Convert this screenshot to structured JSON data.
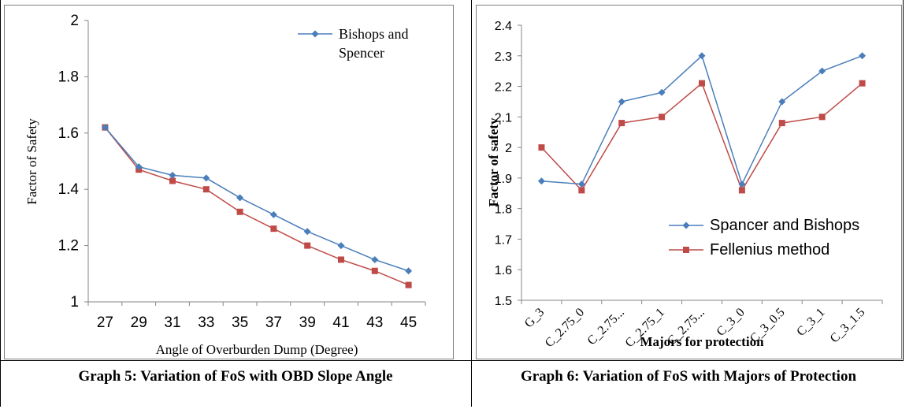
{
  "colors": {
    "series_blue": "#4a7ebb",
    "series_red": "#be4b48",
    "axis": "#868686",
    "frame": "#7f7f7f"
  },
  "captions": {
    "left": "Graph 5: Variation of FoS with OBD Slope Angle",
    "right": "Graph 6: Variation of FoS with Majors of Protection"
  },
  "chart_data": [
    {
      "type": "line",
      "title": "",
      "xlabel": "Angle of Overburden Dump (Degree)",
      "ylabel": "Factor of Safety",
      "categories": [
        "27",
        "29",
        "31",
        "33",
        "35",
        "37",
        "39",
        "41",
        "43",
        "45"
      ],
      "ylim": [
        1,
        2
      ],
      "yticks": [
        "1",
        "1.2",
        "1.4",
        "1.6",
        "1.8",
        "2"
      ],
      "grid": false,
      "legend_position": "top-right",
      "series": [
        {
          "name": "Bishops and Spencer",
          "color": "#4a7ebb",
          "marker": "diamond",
          "values": [
            1.62,
            1.48,
            1.45,
            1.44,
            1.37,
            1.31,
            1.25,
            1.2,
            1.15,
            1.11
          ]
        },
        {
          "name": "",
          "color": "#be4b48",
          "marker": "square",
          "values": [
            1.62,
            1.47,
            1.43,
            1.4,
            1.32,
            1.26,
            1.2,
            1.15,
            1.11,
            1.06
          ]
        }
      ]
    },
    {
      "type": "line",
      "title": "",
      "xlabel": "Majors for protection",
      "ylabel": "Factor of safety",
      "categories": [
        "G_3",
        "C_2.75_0",
        "C_2.75...",
        "C_2.75_1",
        "C_2.75...",
        "C_3_0",
        "C_3_0.5",
        "C_3_1",
        "C_3_1.5"
      ],
      "ylim": [
        1.5,
        2.4
      ],
      "yticks": [
        "1.5",
        "1.6",
        "1.7",
        "1.8",
        "1.9",
        "2",
        "2.1",
        "2.2",
        "2.3",
        "2.4"
      ],
      "grid": false,
      "legend_position": "bottom-right",
      "series": [
        {
          "name": "Spancer and Bishops",
          "color": "#4a7ebb",
          "marker": "diamond",
          "values": [
            1.89,
            1.88,
            2.15,
            2.18,
            2.3,
            1.88,
            2.15,
            2.25,
            2.3
          ]
        },
        {
          "name": "Fellenius method",
          "color": "#be4b48",
          "marker": "square",
          "values": [
            2.0,
            1.86,
            2.08,
            2.1,
            2.21,
            1.86,
            2.08,
            2.1,
            2.21
          ]
        }
      ]
    }
  ]
}
